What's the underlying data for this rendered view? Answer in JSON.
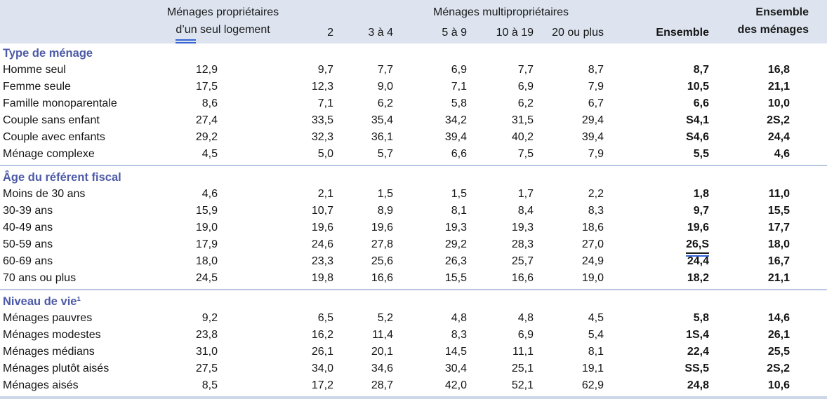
{
  "chart_data": {
    "type": "table",
    "header": {
      "col_single_line1": "Ménages propriétaires",
      "col_single_line2_underlined": "d’un",
      "col_single_line2_rest": " seul logement",
      "group_label": "Ménages multipropriétaires",
      "subcolumns": [
        "2",
        "3 à 4",
        "5 à 9",
        "10 à 19",
        "20 ou plus",
        "Ensemble"
      ],
      "col_total_line1": "Ensemble",
      "col_total_line2": "des ménages"
    },
    "sections": [
      {
        "title": "Type de ménage",
        "rows": [
          {
            "label": "Homme seul",
            "values": [
              "12,9",
              "9,7",
              "7,7",
              "6,9",
              "7,7",
              "8,7",
              "8,7",
              "16,8"
            ]
          },
          {
            "label": "Femme seule",
            "values": [
              "17,5",
              "12,3",
              "9,0",
              "7,1",
              "6,9",
              "7,9",
              "10,5",
              "21,1"
            ]
          },
          {
            "label": "Famille monoparentale",
            "values": [
              "8,6",
              "7,1",
              "6,2",
              "5,8",
              "6,2",
              "6,7",
              "6,6",
              "10,0"
            ]
          },
          {
            "label": "Couple sans enfant",
            "values": [
              "27,4",
              "33,5",
              "35,4",
              "34,2",
              "31,5",
              "29,4",
              "S4,1",
              "2S,2"
            ]
          },
          {
            "label": "Couple avec enfants",
            "values": [
              "29,2",
              "32,3",
              "36,1",
              "39,4",
              "40,2",
              "39,4",
              "S4,6",
              "24,4"
            ]
          },
          {
            "label": "Ménage complexe",
            "values": [
              "4,5",
              "5,0",
              "5,7",
              "6,6",
              "7,5",
              "7,9",
              "5,5",
              "4,6"
            ]
          }
        ]
      },
      {
        "title": "Âge du référent fiscal",
        "rows": [
          {
            "label": "Moins de 30 ans",
            "values": [
              "4,6",
              "2,1",
              "1,5",
              "1,5",
              "1,7",
              "2,2",
              "1,8",
              "11,0"
            ]
          },
          {
            "label": "30-39 ans",
            "values": [
              "15,9",
              "10,7",
              "8,9",
              "8,1",
              "8,4",
              "8,3",
              "9,7",
              "15,5"
            ]
          },
          {
            "label": "40-49 ans",
            "values": [
              "19,0",
              "19,6",
              "19,6",
              "19,3",
              "19,3",
              "18,6",
              "19,6",
              "17,7"
            ]
          },
          {
            "label": "50-59 ans",
            "values": [
              "17,9",
              "24,6",
              "27,8",
              "29,2",
              "28,3",
              "27,0",
              "26,S",
              "18,0"
            ],
            "ensemble_underline": true
          },
          {
            "label": "60-69 ans",
            "values": [
              "18,0",
              "23,3",
              "25,6",
              "26,3",
              "25,7",
              "24,9",
              "24,4",
              "16,7"
            ]
          },
          {
            "label": "70 ans ou plus",
            "values": [
              "24,5",
              "19,8",
              "16,6",
              "15,5",
              "16,6",
              "19,0",
              "18,2",
              "21,1"
            ]
          }
        ]
      },
      {
        "title": "Niveau de vie¹",
        "rows": [
          {
            "label": "Ménages pauvres",
            "values": [
              "9,2",
              "6,5",
              "5,2",
              "4,8",
              "4,8",
              "4,5",
              "5,8",
              "14,6"
            ]
          },
          {
            "label": "Ménages modestes",
            "values": [
              "23,8",
              "16,2",
              "11,4",
              "8,3",
              "6,9",
              "5,4",
              "1S,4",
              "26,1"
            ]
          },
          {
            "label": "Ménages médians",
            "values": [
              "31,0",
              "26,1",
              "20,1",
              "14,5",
              "11,1",
              "8,1",
              "22,4",
              "25,5"
            ]
          },
          {
            "label": "Ménages plutôt aisés",
            "values": [
              "27,5",
              "34,0",
              "34,6",
              "30,4",
              "25,1",
              "19,1",
              "SS,5",
              "2S,2"
            ]
          },
          {
            "label": "Ménages aisés",
            "values": [
              "8,5",
              "17,2",
              "28,7",
              "42,0",
              "52,1",
              "62,9",
              "24,8",
              "10,6"
            ]
          }
        ]
      }
    ],
    "colors": {
      "header_band_bg": "#dde4ef",
      "section_title_blue": "#4c5aa7",
      "divider_blue": "#b9c6e2",
      "underline_blue": "#3564d6",
      "text": "#151515"
    }
  }
}
